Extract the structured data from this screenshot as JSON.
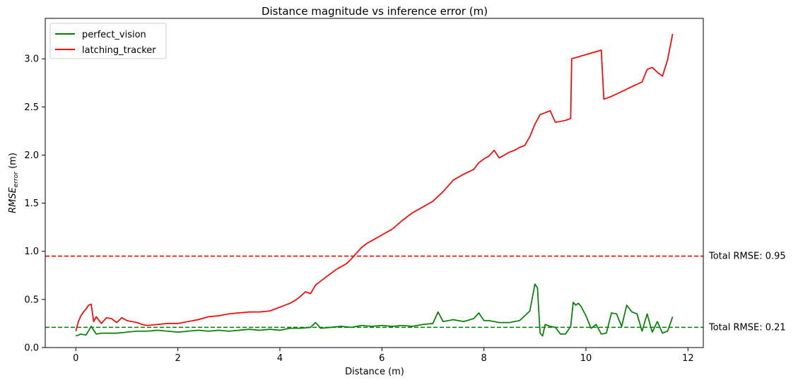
{
  "chart_data": {
    "type": "line",
    "title": "Distance magnitude vs inference error (m)",
    "xlabel": "Distance (m)",
    "ylabel_main": "RMSE",
    "ylabel_sub": "error",
    "ylabel_unit": " (m)",
    "xlim": [
      -0.6,
      12.3
    ],
    "ylim": [
      0,
      3.42
    ],
    "xticks": [
      0,
      2,
      4,
      6,
      8,
      10,
      12
    ],
    "xtick_labels": [
      "0",
      "2",
      "4",
      "6",
      "8",
      "10",
      "12"
    ],
    "yticks": [
      0.0,
      0.5,
      1.0,
      1.5,
      2.0,
      2.5,
      3.0
    ],
    "ytick_labels": [
      "0.0",
      "0.5",
      "1.0",
      "1.5",
      "2.0",
      "2.5",
      "3.0"
    ],
    "grid": false,
    "legend_position": "top-left",
    "series": [
      {
        "name": "perfect_vision",
        "color": "#008000",
        "x": [
          0,
          0.1,
          0.2,
          0.3,
          0.4,
          0.5,
          0.6,
          0.8,
          1.0,
          1.2,
          1.4,
          1.6,
          1.8,
          2.0,
          2.2,
          2.4,
          2.6,
          2.8,
          3.0,
          3.2,
          3.4,
          3.6,
          3.8,
          4.0,
          4.2,
          4.4,
          4.6,
          4.7,
          4.8,
          5.0,
          5.2,
          5.4,
          5.6,
          5.8,
          6.0,
          6.2,
          6.4,
          6.6,
          6.8,
          7.0,
          7.1,
          7.2,
          7.4,
          7.6,
          7.8,
          7.9,
          8.0,
          8.1,
          8.3,
          8.5,
          8.7,
          8.8,
          8.9,
          9.0,
          9.05,
          9.1,
          9.15,
          9.2,
          9.3,
          9.4,
          9.5,
          9.6,
          9.7,
          9.75,
          9.8,
          9.85,
          9.9,
          10.0,
          10.1,
          10.2,
          10.3,
          10.4,
          10.5,
          10.6,
          10.7,
          10.8,
          10.9,
          11.0,
          11.1,
          11.2,
          11.3,
          11.4,
          11.5,
          11.6,
          11.7
        ],
        "y": [
          0.12,
          0.14,
          0.13,
          0.22,
          0.14,
          0.15,
          0.15,
          0.15,
          0.16,
          0.17,
          0.17,
          0.18,
          0.17,
          0.16,
          0.17,
          0.18,
          0.17,
          0.18,
          0.17,
          0.18,
          0.19,
          0.18,
          0.19,
          0.18,
          0.2,
          0.2,
          0.21,
          0.26,
          0.2,
          0.21,
          0.22,
          0.21,
          0.23,
          0.22,
          0.23,
          0.22,
          0.23,
          0.22,
          0.24,
          0.25,
          0.37,
          0.27,
          0.29,
          0.27,
          0.3,
          0.36,
          0.28,
          0.28,
          0.26,
          0.26,
          0.28,
          0.33,
          0.38,
          0.66,
          0.62,
          0.15,
          0.12,
          0.24,
          0.22,
          0.21,
          0.14,
          0.14,
          0.22,
          0.47,
          0.44,
          0.46,
          0.43,
          0.33,
          0.2,
          0.24,
          0.14,
          0.15,
          0.36,
          0.35,
          0.22,
          0.44,
          0.37,
          0.35,
          0.17,
          0.35,
          0.16,
          0.27,
          0.15,
          0.17,
          0.32
        ]
      },
      {
        "name": "latching_tracker",
        "color": "#ff0000",
        "x": [
          0,
          0.05,
          0.1,
          0.15,
          0.2,
          0.25,
          0.3,
          0.35,
          0.4,
          0.5,
          0.6,
          0.7,
          0.8,
          0.9,
          1.0,
          1.1,
          1.2,
          1.3,
          1.4,
          1.6,
          1.8,
          2.0,
          2.2,
          2.4,
          2.6,
          2.8,
          3.0,
          3.2,
          3.4,
          3.6,
          3.8,
          4.0,
          4.1,
          4.2,
          4.3,
          4.4,
          4.5,
          4.6,
          4.7,
          4.8,
          4.9,
          5.0,
          5.1,
          5.2,
          5.3,
          5.4,
          5.5,
          5.6,
          5.7,
          5.8,
          5.9,
          6.0,
          6.2,
          6.4,
          6.6,
          6.8,
          7.0,
          7.2,
          7.4,
          7.6,
          7.8,
          7.9,
          8.0,
          8.1,
          8.2,
          8.3,
          8.4,
          8.5,
          8.6,
          8.7,
          8.8,
          8.9,
          9.0,
          9.1,
          9.2,
          9.3,
          9.4,
          9.5,
          9.6,
          9.7,
          9.72,
          10.3,
          10.35,
          10.5,
          10.7,
          10.9,
          11.1,
          11.2,
          11.3,
          11.4,
          11.5,
          11.6,
          11.7
        ],
        "y": [
          0.17,
          0.27,
          0.33,
          0.37,
          0.4,
          0.44,
          0.45,
          0.27,
          0.32,
          0.25,
          0.31,
          0.3,
          0.26,
          0.31,
          0.28,
          0.27,
          0.26,
          0.24,
          0.23,
          0.24,
          0.25,
          0.25,
          0.27,
          0.29,
          0.32,
          0.33,
          0.35,
          0.36,
          0.37,
          0.37,
          0.38,
          0.42,
          0.44,
          0.46,
          0.49,
          0.53,
          0.58,
          0.56,
          0.65,
          0.69,
          0.73,
          0.77,
          0.81,
          0.84,
          0.87,
          0.92,
          0.98,
          1.04,
          1.08,
          1.11,
          1.14,
          1.17,
          1.23,
          1.32,
          1.4,
          1.46,
          1.52,
          1.62,
          1.74,
          1.8,
          1.85,
          1.92,
          1.96,
          1.99,
          2.05,
          1.97,
          2.0,
          2.03,
          2.05,
          2.08,
          2.1,
          2.19,
          2.32,
          2.42,
          2.44,
          2.46,
          2.34,
          2.35,
          2.36,
          2.38,
          3.0,
          3.09,
          2.58,
          2.61,
          2.66,
          2.71,
          2.76,
          2.89,
          2.91,
          2.86,
          2.82,
          2.99,
          3.26
        ]
      }
    ],
    "reference_lines": [
      {
        "value": 0.95,
        "color": "#ff0000",
        "label": "Total RMSE: 0.95"
      },
      {
        "value": 0.21,
        "color": "#008000",
        "label": "Total RMSE: 0.21"
      }
    ]
  }
}
